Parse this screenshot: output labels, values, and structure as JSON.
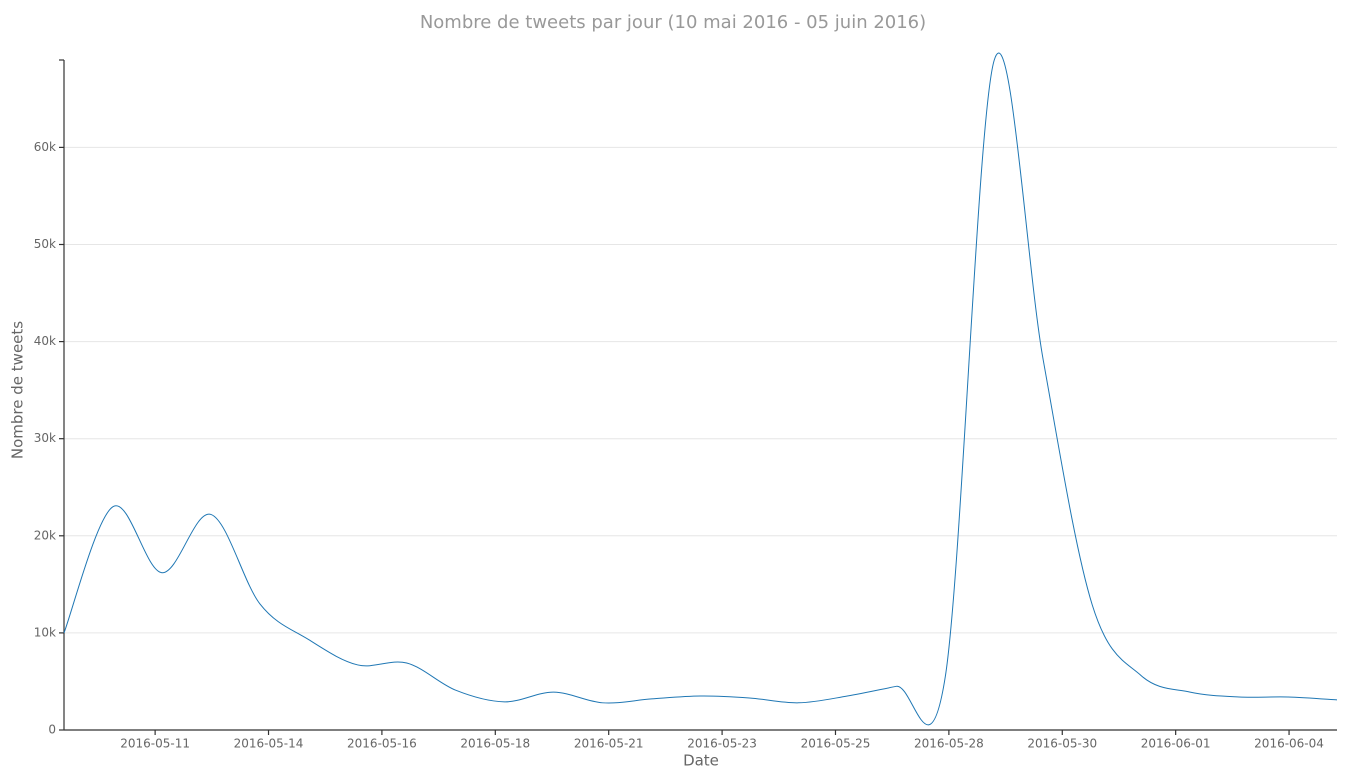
{
  "chart_data": {
    "type": "line",
    "title": "Nombre de tweets par jour (10 mai 2016 - 05 juin 2016)",
    "x_label": "Date",
    "y_label": "Nombre de tweets",
    "x": [
      "2016-05-10",
      "2016-05-11",
      "2016-05-12",
      "2016-05-13",
      "2016-05-14",
      "2016-05-15",
      "2016-05-16",
      "2016-05-17",
      "2016-05-18",
      "2016-05-19",
      "2016-05-20",
      "2016-05-21",
      "2016-05-22",
      "2016-05-23",
      "2016-05-24",
      "2016-05-25",
      "2016-05-26",
      "2016-05-27",
      "2016-05-28",
      "2016-05-29",
      "2016-05-30",
      "2016-05-31",
      "2016-06-01",
      "2016-06-02",
      "2016-06-03",
      "2016-06-04",
      "2016-06-05"
    ],
    "series": [
      {
        "name": "tweets",
        "color": "#1f77b4",
        "values": [
          10000,
          23000,
          16200,
          22200,
          13000,
          9300,
          6700,
          6900,
          4100,
          2900,
          3900,
          2800,
          3200,
          3500,
          3300,
          2800,
          3500,
          4500,
          5500,
          69000,
          38100,
          12900,
          5600,
          3900,
          3400,
          3400,
          3100
        ]
      }
    ],
    "xlim": [
      "2016-05-10",
      "2016-06-05"
    ],
    "xticks": [
      {
        "value": "2016-05-11T20:40",
        "label": "2016-05-11"
      },
      {
        "value": "2016-05-14T04:15",
        "label": "2016-05-14"
      },
      {
        "value": "2016-05-16T11:50",
        "label": "2016-05-16"
      },
      {
        "value": "2016-05-18T19:25",
        "label": "2016-05-18"
      },
      {
        "value": "2016-05-21T03:00",
        "label": "2016-05-21"
      },
      {
        "value": "2016-05-23T10:35",
        "label": "2016-05-23"
      },
      {
        "value": "2016-05-25T18:10",
        "label": "2016-05-25"
      },
      {
        "value": "2016-05-28T01:45",
        "label": "2016-05-28"
      },
      {
        "value": "2016-05-30T09:20",
        "label": "2016-05-30"
      },
      {
        "value": "2016-06-01T16:55",
        "label": "2016-06-01"
      },
      {
        "value": "2016-06-04T00:30",
        "label": "2016-06-04"
      }
    ],
    "ylim": [
      0,
      69000
    ],
    "yticks": [
      0,
      {
        "value": 10000,
        "label": "10k"
      },
      {
        "value": 20000,
        "label": "20k"
      },
      {
        "value": 30000,
        "label": "30k"
      },
      {
        "value": 40000,
        "label": "40k"
      },
      {
        "value": 50000,
        "label": "50k"
      },
      {
        "value": 60000,
        "label": "60k"
      }
    ],
    "grid": true
  }
}
